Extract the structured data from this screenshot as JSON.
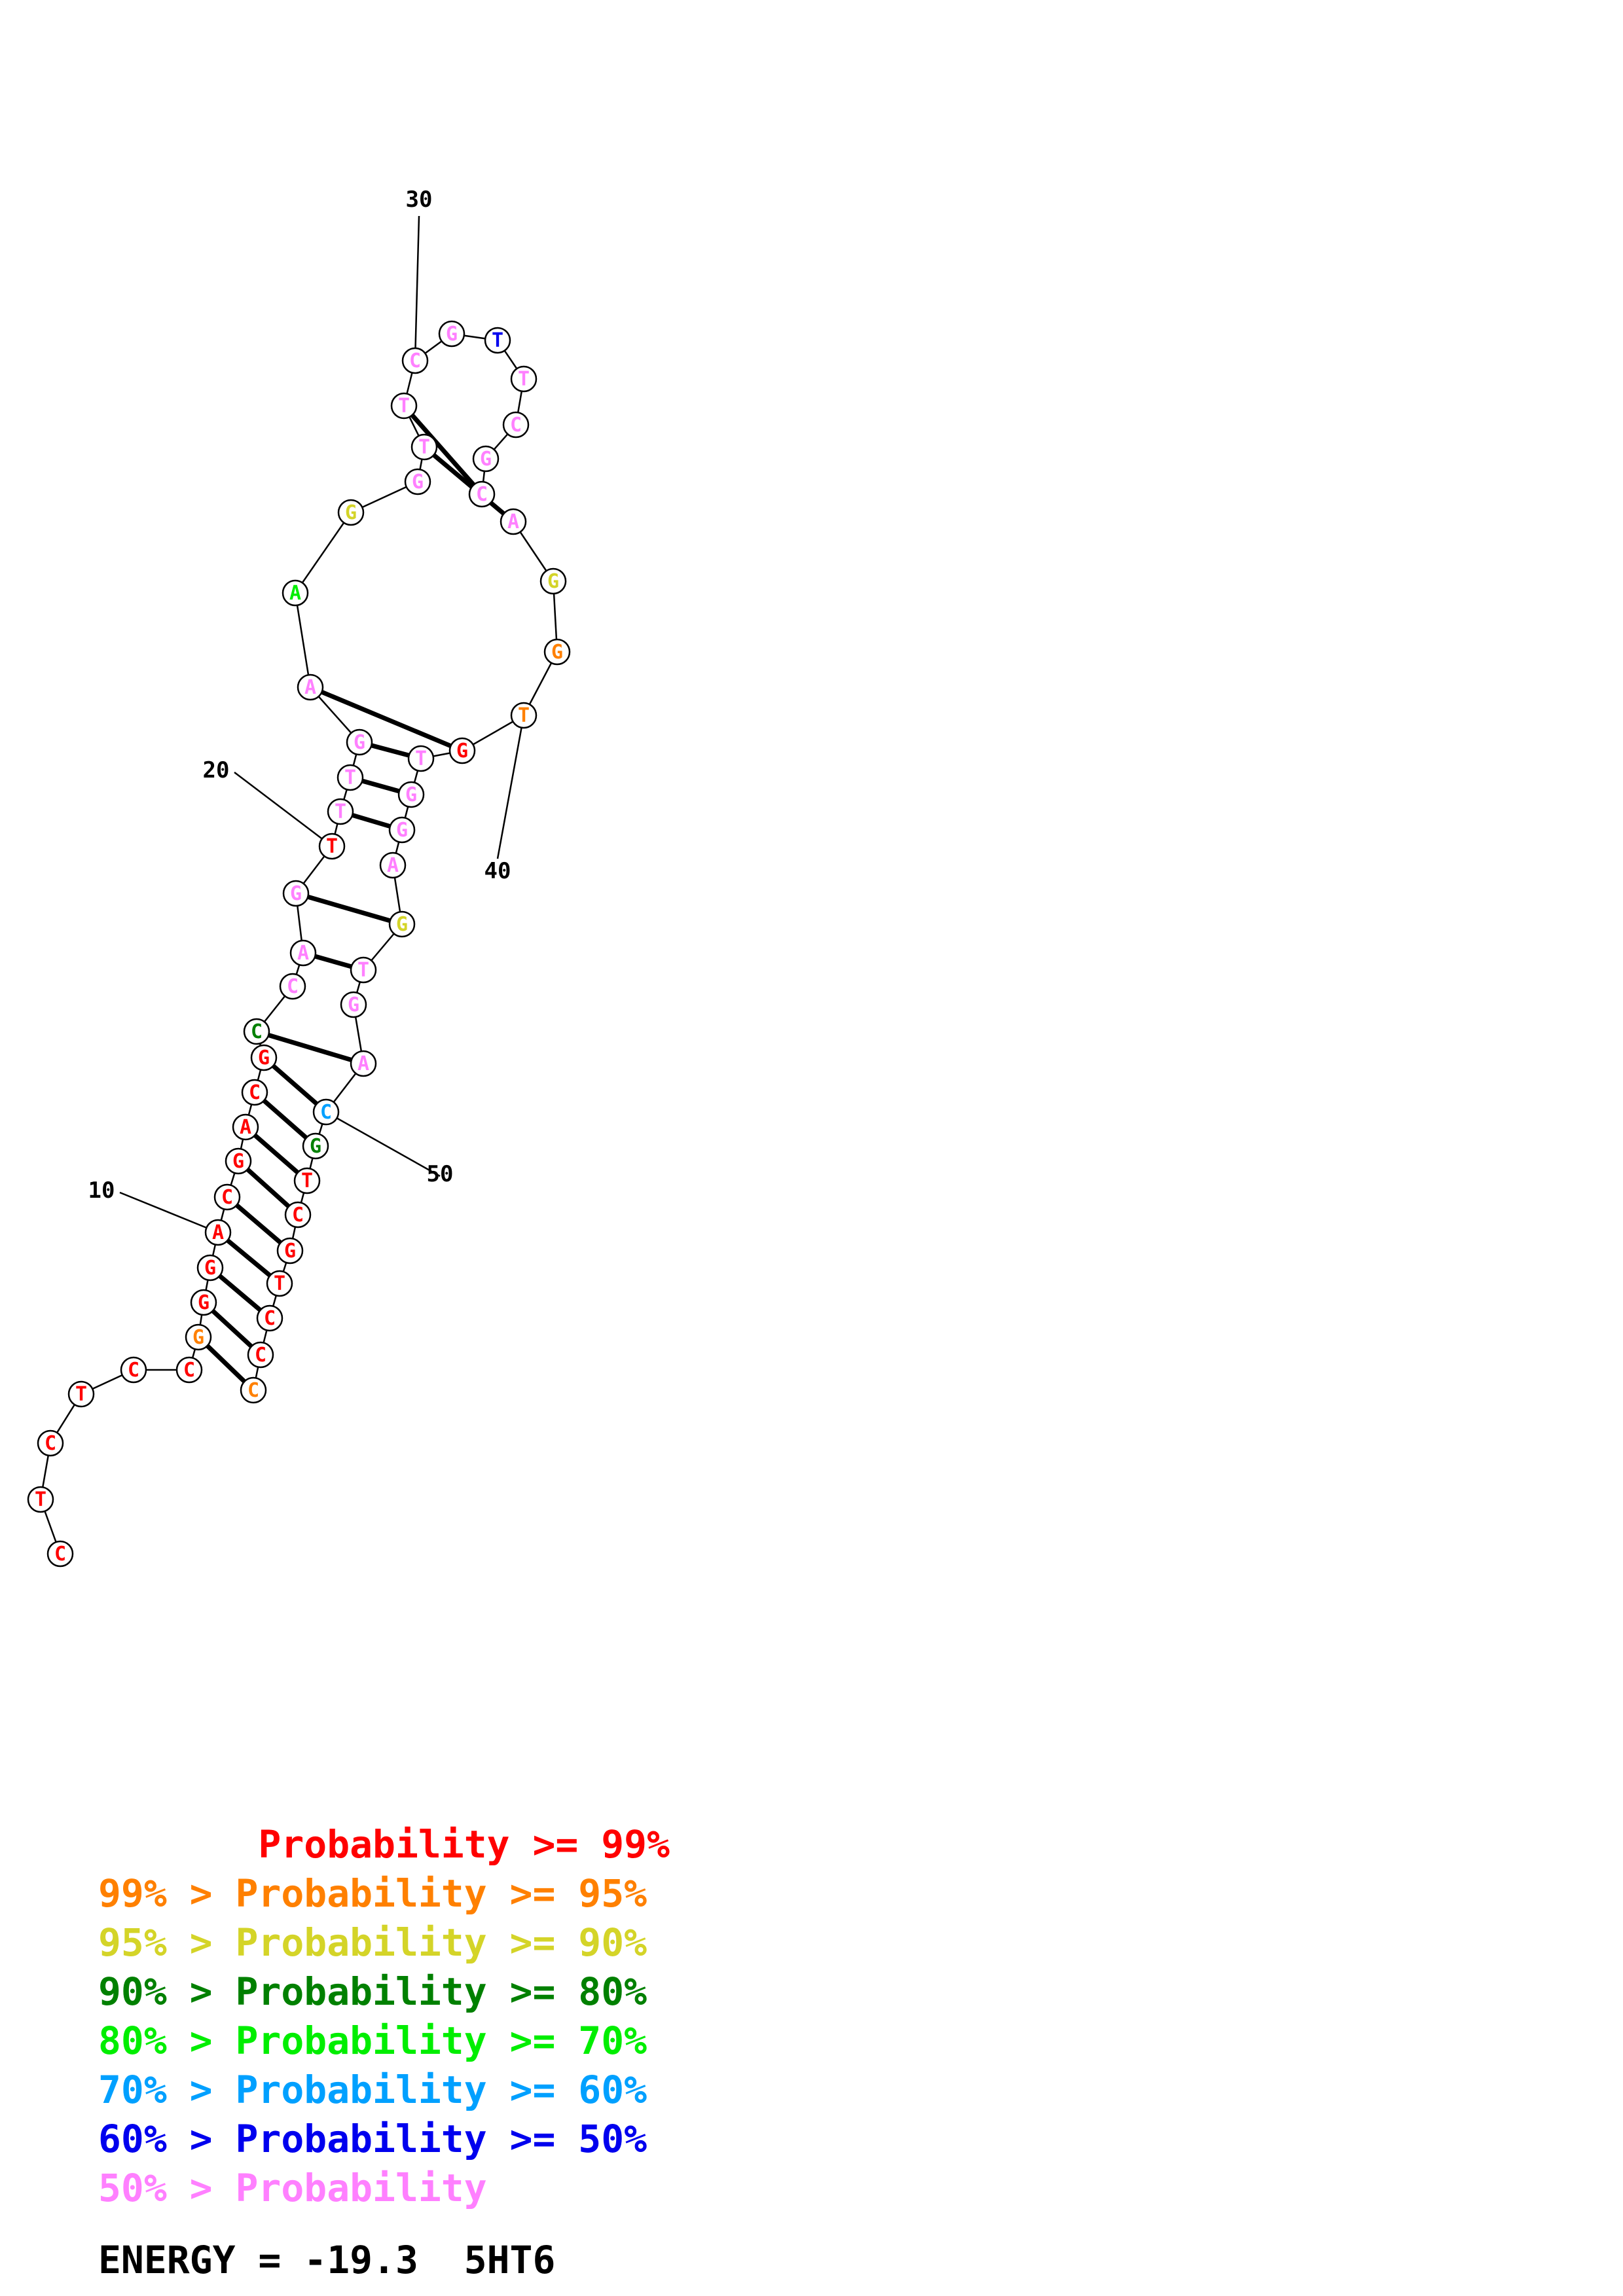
{
  "structure": {
    "sequence": [
      "C",
      "T",
      "C",
      "T",
      "C",
      "C",
      "G",
      "G",
      "G",
      "A",
      "C",
      "G",
      "A",
      "C",
      "G",
      "C",
      "C",
      "A",
      "G",
      "T",
      "T",
      "T",
      "G",
      "A",
      "A",
      "G",
      "G",
      "T",
      "T",
      "C",
      "G",
      "T",
      "T",
      "C",
      "G",
      "C",
      "A",
      "G",
      "G",
      "T",
      "G",
      "T",
      "G",
      "G",
      "A",
      "G",
      "T",
      "G",
      "A",
      "C",
      "G",
      "T",
      "C",
      "G",
      "T",
      "C",
      "C",
      "C"
    ],
    "pairs": [
      [
        7,
        58
      ],
      [
        8,
        57
      ],
      [
        9,
        56
      ],
      [
        10,
        55
      ],
      [
        11,
        54
      ],
      [
        12,
        53
      ],
      [
        13,
        52
      ],
      [
        14,
        51
      ],
      [
        15,
        50
      ],
      [
        16,
        49
      ],
      [
        18,
        47
      ],
      [
        19,
        46
      ],
      [
        21,
        44
      ],
      [
        22,
        43
      ],
      [
        23,
        42
      ],
      [
        24,
        41
      ],
      [
        28,
        37
      ],
      [
        29,
        36
      ]
    ],
    "probability_levels": [
      0,
      0,
      0,
      0,
      0,
      0,
      1,
      0,
      0,
      0,
      0,
      0,
      0,
      0,
      0,
      3,
      7,
      7,
      7,
      0,
      7,
      7,
      7,
      7,
      4,
      2,
      7,
      7,
      7,
      7,
      7,
      6,
      7,
      7,
      7,
      7,
      7,
      2,
      1,
      1,
      0,
      7,
      7,
      7,
      7,
      2,
      7,
      7,
      7,
      5,
      3,
      0,
      0,
      0,
      0,
      0,
      0,
      1
    ],
    "position_labels": [
      {
        "index": 10,
        "text": "10"
      },
      {
        "index": 20,
        "text": "20"
      },
      {
        "index": 30,
        "text": "30"
      },
      {
        "index": 40,
        "text": "40"
      },
      {
        "index": 50,
        "text": "50"
      }
    ]
  },
  "legend": {
    "colors": [
      "#ff0000",
      "#ff8000",
      "#d4d428",
      "#008000",
      "#00ee00",
      "#00a0ff",
      "#0000ee",
      "#ff80ff"
    ],
    "lines": [
      "       Probability >= 99%",
      "99% > Probability >= 95%",
      "95% > Probability >= 90%",
      "90% > Probability >= 80%",
      "80% > Probability >= 70%",
      "70% > Probability >= 60%",
      "60% > Probability >= 50%",
      "50% > Probability"
    ]
  },
  "energy_text": "ENERGY = -19.3  5HT6"
}
